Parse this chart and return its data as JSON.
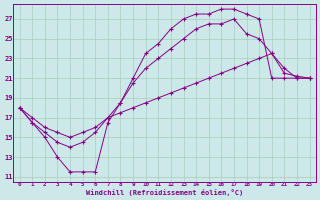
{
  "bg_color": "#cce8e8",
  "line_color": "#880088",
  "grid_color": "#aaccbb",
  "xlabel": "Windchill (Refroidissement éolien,°C)",
  "yticks": [
    11,
    13,
    15,
    17,
    19,
    21,
    23,
    25,
    27
  ],
  "xlim": [
    -0.5,
    23.5
  ],
  "ylim": [
    10.5,
    28.5
  ],
  "line1_x": [
    0,
    1,
    2,
    3,
    4,
    5,
    6,
    7,
    8,
    9,
    10,
    11,
    12,
    13,
    14,
    15,
    16,
    17,
    18,
    19,
    20,
    21,
    22,
    23
  ],
  "line1_y": [
    18.0,
    16.5,
    15.0,
    13.0,
    11.5,
    11.5,
    11.5,
    16.5,
    18.5,
    21.0,
    23.5,
    24.5,
    26.0,
    27.0,
    27.5,
    27.5,
    28.0,
    28.0,
    27.5,
    27.0,
    21.0,
    21.0,
    21.0,
    21.0
  ],
  "line2_x": [
    0,
    1,
    2,
    3,
    4,
    5,
    6,
    7,
    8,
    9,
    10,
    11,
    12,
    13,
    14,
    15,
    16,
    17,
    18,
    19,
    20,
    21,
    22,
    23
  ],
  "line2_y": [
    18.0,
    16.5,
    15.5,
    14.5,
    14.0,
    14.5,
    15.5,
    17.0,
    18.5,
    20.5,
    22.0,
    23.0,
    24.0,
    25.0,
    26.0,
    26.5,
    26.5,
    27.0,
    25.5,
    25.0,
    23.5,
    22.0,
    21.0,
    21.0
  ],
  "line3_x": [
    0,
    1,
    2,
    3,
    4,
    5,
    6,
    7,
    8,
    9,
    10,
    11,
    12,
    13,
    14,
    15,
    16,
    17,
    18,
    19,
    20,
    21,
    22,
    23
  ],
  "line3_y": [
    18.0,
    17.0,
    16.0,
    15.5,
    15.0,
    15.5,
    16.0,
    17.0,
    17.5,
    18.0,
    18.5,
    19.0,
    19.5,
    20.0,
    20.5,
    21.0,
    21.5,
    22.0,
    22.5,
    23.0,
    23.5,
    21.5,
    21.2,
    21.0
  ],
  "figsize": [
    3.2,
    2.0
  ],
  "dpi": 100
}
